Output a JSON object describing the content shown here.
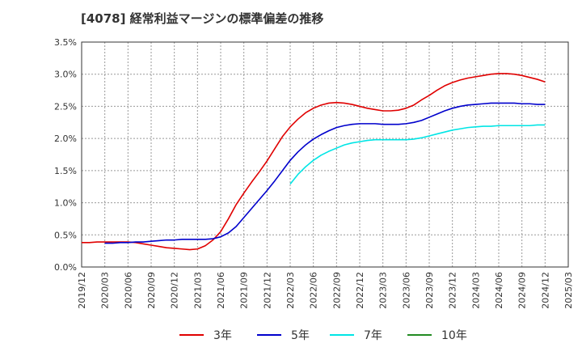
{
  "chart_data": {
    "type": "line",
    "title": "[4078]  経常利益マージンの標準偏差の推移",
    "x_labels": [
      "2019/12",
      "2020/03",
      "2020/06",
      "2020/09",
      "2020/12",
      "2021/03",
      "2021/06",
      "2021/09",
      "2021/12",
      "2022/03",
      "2022/06",
      "2022/09",
      "2022/12",
      "2023/03",
      "2023/06",
      "2023/09",
      "2023/12",
      "2024/03",
      "2024/06",
      "2024/09",
      "2024/12",
      "2025/03"
    ],
    "y_ticks": [
      "0.0%",
      "0.5%",
      "1.0%",
      "1.5%",
      "2.0%",
      "2.5%",
      "3.0%",
      "3.5%"
    ],
    "ylim": [
      0,
      3.5
    ],
    "y_unit": "%",
    "grid": true,
    "legend_position": "bottom",
    "series": [
      {
        "name": "3年",
        "color": "#e00000",
        "points": [
          [
            "2019/12",
            0.38
          ],
          [
            "2020/01",
            0.38
          ],
          [
            "2020/02",
            0.39
          ],
          [
            "2020/03",
            0.39
          ],
          [
            "2020/04",
            0.39
          ],
          [
            "2020/05",
            0.39
          ],
          [
            "2020/06",
            0.39
          ],
          [
            "2020/07",
            0.38
          ],
          [
            "2020/08",
            0.36
          ],
          [
            "2020/09",
            0.34
          ],
          [
            "2020/10",
            0.32
          ],
          [
            "2020/11",
            0.3
          ],
          [
            "2020/12",
            0.29
          ],
          [
            "2021/01",
            0.28
          ],
          [
            "2021/02",
            0.27
          ],
          [
            "2021/03",
            0.28
          ],
          [
            "2021/04",
            0.33
          ],
          [
            "2021/05",
            0.42
          ],
          [
            "2021/06",
            0.55
          ],
          [
            "2021/07",
            0.75
          ],
          [
            "2021/08",
            0.97
          ],
          [
            "2021/09",
            1.15
          ],
          [
            "2021/10",
            1.32
          ],
          [
            "2021/11",
            1.48
          ],
          [
            "2021/12",
            1.65
          ],
          [
            "2022/01",
            1.84
          ],
          [
            "2022/02",
            2.03
          ],
          [
            "2022/03",
            2.18
          ],
          [
            "2022/04",
            2.3
          ],
          [
            "2022/05",
            2.4
          ],
          [
            "2022/06",
            2.47
          ],
          [
            "2022/07",
            2.52
          ],
          [
            "2022/08",
            2.55
          ],
          [
            "2022/09",
            2.56
          ],
          [
            "2022/10",
            2.55
          ],
          [
            "2022/11",
            2.53
          ],
          [
            "2022/12",
            2.5
          ],
          [
            "2023/01",
            2.47
          ],
          [
            "2023/02",
            2.45
          ],
          [
            "2023/03",
            2.43
          ],
          [
            "2023/04",
            2.43
          ],
          [
            "2023/05",
            2.44
          ],
          [
            "2023/06",
            2.47
          ],
          [
            "2023/07",
            2.52
          ],
          [
            "2023/08",
            2.6
          ],
          [
            "2023/09",
            2.67
          ],
          [
            "2023/10",
            2.75
          ],
          [
            "2023/11",
            2.82
          ],
          [
            "2023/12",
            2.87
          ],
          [
            "2024/01",
            2.91
          ],
          [
            "2024/02",
            2.94
          ],
          [
            "2024/03",
            2.96
          ],
          [
            "2024/04",
            2.98
          ],
          [
            "2024/05",
            3.0
          ],
          [
            "2024/06",
            3.01
          ],
          [
            "2024/07",
            3.01
          ],
          [
            "2024/08",
            3.0
          ],
          [
            "2024/09",
            2.98
          ],
          [
            "2024/10",
            2.95
          ],
          [
            "2024/11",
            2.92
          ],
          [
            "2024/12",
            2.88
          ]
        ]
      },
      {
        "name": "5年",
        "color": "#0000cc",
        "points": [
          [
            "2020/03",
            0.37
          ],
          [
            "2020/04",
            0.37
          ],
          [
            "2020/05",
            0.38
          ],
          [
            "2020/06",
            0.38
          ],
          [
            "2020/07",
            0.39
          ],
          [
            "2020/08",
            0.39
          ],
          [
            "2020/09",
            0.4
          ],
          [
            "2020/10",
            0.41
          ],
          [
            "2020/11",
            0.42
          ],
          [
            "2020/12",
            0.42
          ],
          [
            "2021/01",
            0.43
          ],
          [
            "2021/02",
            0.43
          ],
          [
            "2021/03",
            0.43
          ],
          [
            "2021/04",
            0.43
          ],
          [
            "2021/05",
            0.44
          ],
          [
            "2021/06",
            0.47
          ],
          [
            "2021/07",
            0.53
          ],
          [
            "2021/08",
            0.63
          ],
          [
            "2021/09",
            0.77
          ],
          [
            "2021/10",
            0.91
          ],
          [
            "2021/11",
            1.05
          ],
          [
            "2021/12",
            1.19
          ],
          [
            "2022/01",
            1.34
          ],
          [
            "2022/02",
            1.5
          ],
          [
            "2022/03",
            1.66
          ],
          [
            "2022/04",
            1.79
          ],
          [
            "2022/05",
            1.9
          ],
          [
            "2022/06",
            1.99
          ],
          [
            "2022/07",
            2.06
          ],
          [
            "2022/08",
            2.12
          ],
          [
            "2022/09",
            2.17
          ],
          [
            "2022/10",
            2.2
          ],
          [
            "2022/11",
            2.22
          ],
          [
            "2022/12",
            2.23
          ],
          [
            "2023/01",
            2.23
          ],
          [
            "2023/02",
            2.23
          ],
          [
            "2023/03",
            2.22
          ],
          [
            "2023/04",
            2.22
          ],
          [
            "2023/05",
            2.22
          ],
          [
            "2023/06",
            2.23
          ],
          [
            "2023/07",
            2.25
          ],
          [
            "2023/08",
            2.28
          ],
          [
            "2023/09",
            2.33
          ],
          [
            "2023/10",
            2.38
          ],
          [
            "2023/11",
            2.43
          ],
          [
            "2023/12",
            2.47
          ],
          [
            "2024/01",
            2.5
          ],
          [
            "2024/02",
            2.52
          ],
          [
            "2024/03",
            2.53
          ],
          [
            "2024/04",
            2.54
          ],
          [
            "2024/05",
            2.55
          ],
          [
            "2024/06",
            2.55
          ],
          [
            "2024/07",
            2.55
          ],
          [
            "2024/08",
            2.55
          ],
          [
            "2024/09",
            2.54
          ],
          [
            "2024/10",
            2.54
          ],
          [
            "2024/11",
            2.53
          ],
          [
            "2024/12",
            2.53
          ]
        ]
      },
      {
        "name": "7年",
        "color": "#00e5e5",
        "points": [
          [
            "2022/03",
            1.29
          ],
          [
            "2022/04",
            1.44
          ],
          [
            "2022/05",
            1.56
          ],
          [
            "2022/06",
            1.66
          ],
          [
            "2022/07",
            1.74
          ],
          [
            "2022/08",
            1.8
          ],
          [
            "2022/09",
            1.85
          ],
          [
            "2022/10",
            1.9
          ],
          [
            "2022/11",
            1.93
          ],
          [
            "2022/12",
            1.95
          ],
          [
            "2023/01",
            1.97
          ],
          [
            "2023/02",
            1.98
          ],
          [
            "2023/03",
            1.98
          ],
          [
            "2023/04",
            1.98
          ],
          [
            "2023/05",
            1.98
          ],
          [
            "2023/06",
            1.98
          ],
          [
            "2023/07",
            1.99
          ],
          [
            "2023/08",
            2.01
          ],
          [
            "2023/09",
            2.04
          ],
          [
            "2023/10",
            2.07
          ],
          [
            "2023/11",
            2.1
          ],
          [
            "2023/12",
            2.13
          ],
          [
            "2024/01",
            2.15
          ],
          [
            "2024/02",
            2.17
          ],
          [
            "2024/03",
            2.18
          ],
          [
            "2024/04",
            2.19
          ],
          [
            "2024/05",
            2.19
          ],
          [
            "2024/06",
            2.2
          ],
          [
            "2024/07",
            2.2
          ],
          [
            "2024/08",
            2.2
          ],
          [
            "2024/09",
            2.2
          ],
          [
            "2024/10",
            2.2
          ],
          [
            "2024/11",
            2.21
          ],
          [
            "2024/12",
            2.21
          ]
        ]
      },
      {
        "name": "10年",
        "color": "#228b22",
        "points": []
      }
    ]
  }
}
